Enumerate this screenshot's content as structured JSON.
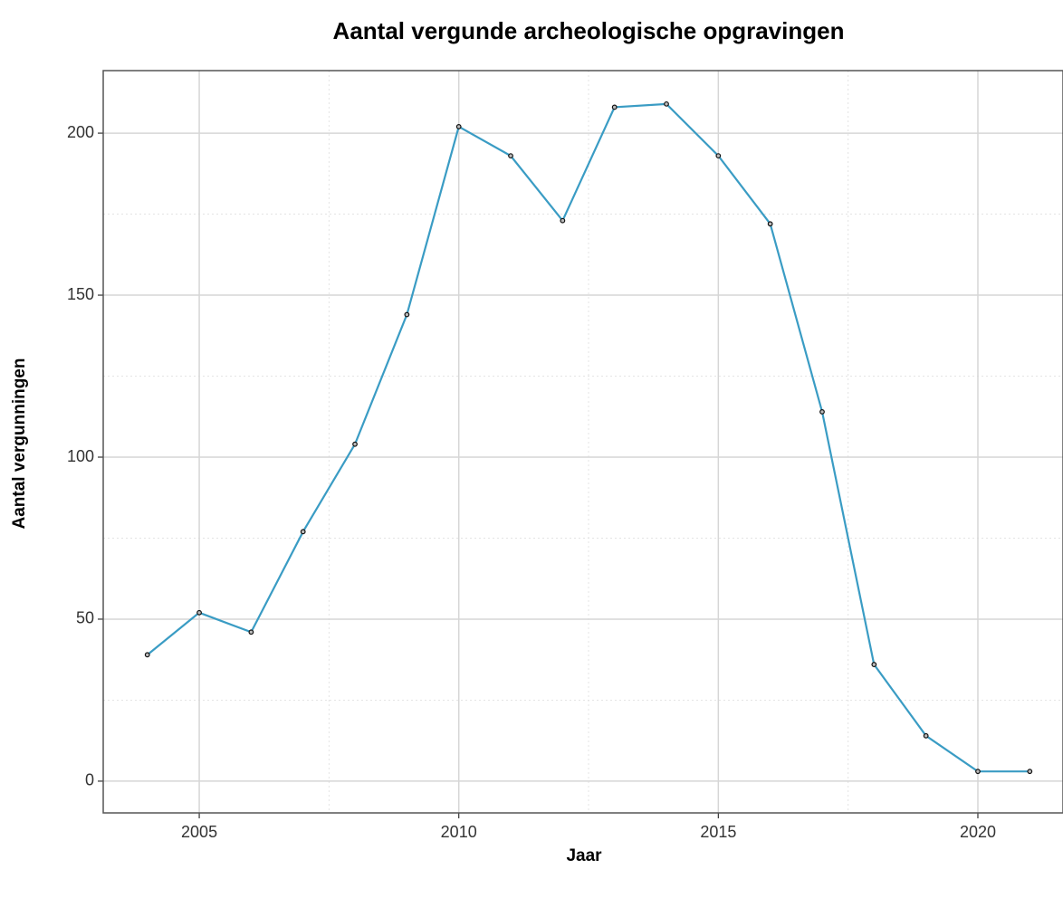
{
  "chart_data": {
    "type": "line",
    "title": "Aantal vergunde archeologische opgravingen",
    "x_label": "Jaar",
    "y_label": "Aantal vergunningen",
    "x": [
      2004,
      2005,
      2006,
      2007,
      2008,
      2009,
      2010,
      2011,
      2012,
      2013,
      2014,
      2015,
      2016,
      2017,
      2018,
      2019,
      2020,
      2021
    ],
    "series": [
      {
        "name": "Aantal vergunningen",
        "color": "#3a9cc4",
        "values": [
          39,
          52,
          46,
          77,
          104,
          144,
          202,
          193,
          173,
          208,
          209,
          193,
          172,
          114,
          36,
          14,
          3,
          3
        ]
      }
    ],
    "xlim": [
      2003.15,
      2021.64
    ],
    "ylim": [
      -9.8,
      219.3
    ],
    "xticks": [
      2005,
      2010,
      2015,
      2020
    ],
    "yticks": [
      0,
      50,
      100,
      150,
      200
    ],
    "grid": true,
    "minor_grid": true,
    "markers": true
  }
}
